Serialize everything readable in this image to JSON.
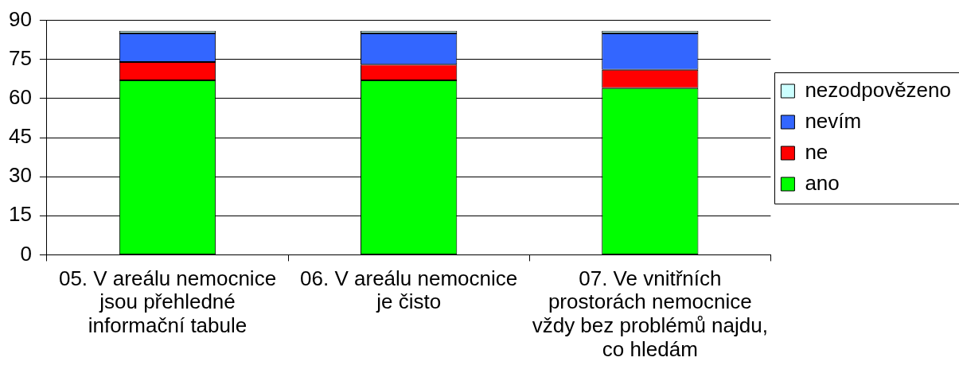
{
  "chart_data": {
    "type": "bar",
    "categories": [
      "05. V areálu nemocnice jsou přehledné informační tabule",
      "06. V areálu nemocnice je čisto",
      "07. Ve vnitřních prostorách nemocnice vždy bez problémů najdu, co hledám"
    ],
    "series": [
      {
        "name": "ano",
        "color": "#00ff00",
        "values": [
          67,
          67,
          64
        ]
      },
      {
        "name": "ne",
        "color": "#ff0000",
        "values": [
          7,
          6,
          7
        ]
      },
      {
        "name": "nevím",
        "color": "#3366ff",
        "values": [
          11,
          12,
          14
        ]
      },
      {
        "name": "nezodpovězeno",
        "color": "#ccffff",
        "values": [
          1,
          1,
          1
        ]
      }
    ],
    "stacked": true,
    "ylim": [
      0,
      90
    ],
    "yticks": [
      0,
      15,
      30,
      45,
      60,
      75,
      90
    ],
    "grid": "y",
    "legend": "right"
  }
}
